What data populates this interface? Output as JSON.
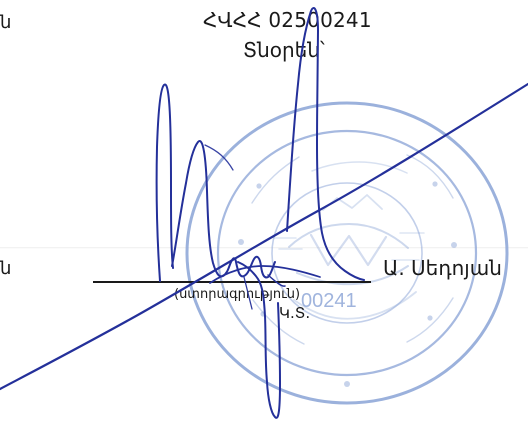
{
  "document": {
    "left_fragment_top": "ն",
    "tax_code_line": "ՀՎՀՀ 02500241",
    "director_label": "Տնօրեն՝",
    "left_fragment_middle": "ն",
    "director_name": "Ա. Սեդոյան",
    "signature_caption": "(ստորագրություն)",
    "seal_abbreviation": "Կ.Տ.",
    "stamp_visible_number": "00241"
  },
  "colors": {
    "ink": "#1a1a1a",
    "pen_blue": "#24309a",
    "stamp_blue": "#90a8d8"
  }
}
